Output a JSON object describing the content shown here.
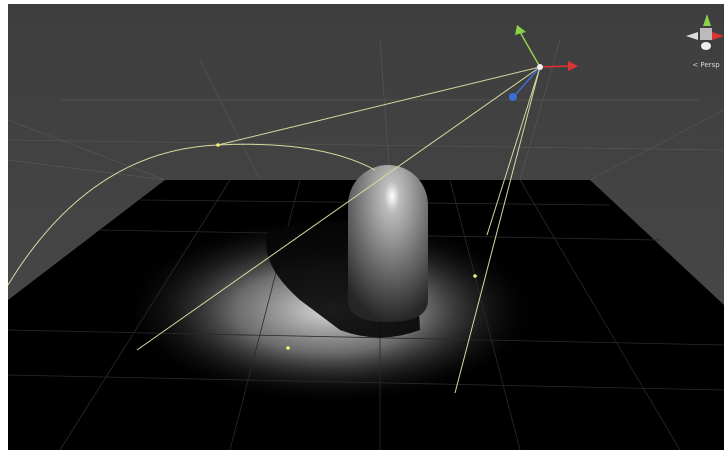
{
  "scene_gizmo": {
    "projection_label": "< Persp"
  }
}
